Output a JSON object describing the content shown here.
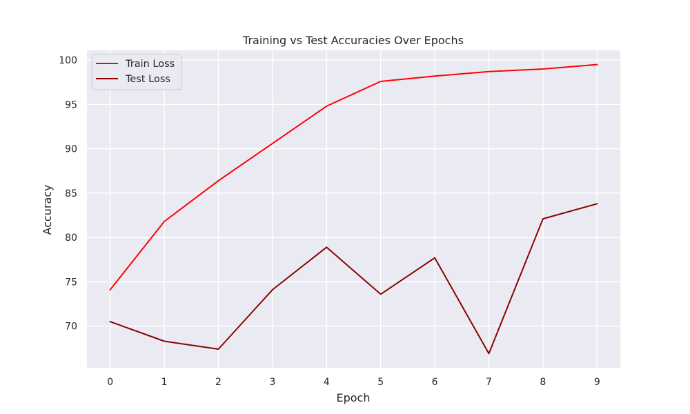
{
  "chart_data": {
    "type": "line",
    "title": "Training vs Test Accuracies Over Epochs",
    "xlabel": "Epoch",
    "ylabel": "Accuracy",
    "x": [
      0,
      1,
      2,
      3,
      4,
      5,
      6,
      7,
      8,
      9
    ],
    "x_ticks": [
      "0",
      "1",
      "2",
      "3",
      "4",
      "5",
      "6",
      "7",
      "8",
      "9"
    ],
    "y_ticks": [
      "70",
      "75",
      "80",
      "85",
      "90",
      "95",
      "100"
    ],
    "y_tick_values": [
      70,
      75,
      80,
      85,
      90,
      95,
      100
    ],
    "xlim": [
      -0.43,
      9.43
    ],
    "ylim": [
      65.3,
      101.1
    ],
    "grid": true,
    "legend_position": "top-left",
    "series": [
      {
        "name": "Train Loss",
        "color": "#ff0000",
        "values": [
          74.1,
          81.8,
          86.4,
          90.6,
          94.8,
          97.6,
          98.2,
          98.7,
          99.0,
          99.5
        ]
      },
      {
        "name": "Test Loss",
        "color": "#8b0000",
        "values": [
          70.5,
          68.3,
          67.4,
          74.1,
          78.9,
          73.6,
          77.7,
          66.9,
          82.1,
          83.8
        ]
      }
    ]
  }
}
